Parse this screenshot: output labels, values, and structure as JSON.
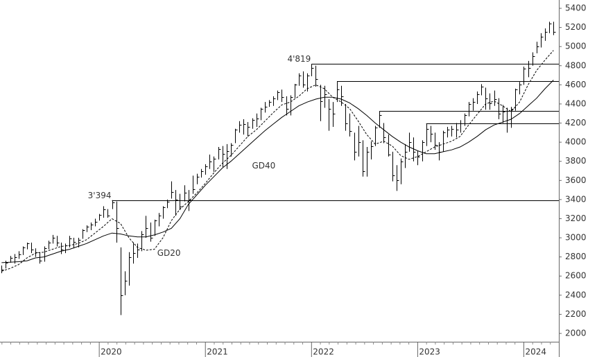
{
  "chart_data": {
    "type": "ohlc",
    "xlim": [
      2019.065,
      2024.33
    ],
    "ylim": [
      1913,
      5487
    ],
    "xticks": [
      2020,
      2021,
      2022,
      2023,
      2024
    ],
    "yticks": [
      2000,
      2200,
      2400,
      2600,
      2800,
      3000,
      3200,
      3400,
      3600,
      3800,
      4000,
      4200,
      4400,
      4600,
      4800,
      5000,
      5200,
      5400
    ],
    "color": "#000000",
    "bars": {
      "x": [
        2019.08,
        2019.12,
        2019.16,
        2019.2,
        2019.24,
        2019.28,
        2019.32,
        2019.36,
        2019.4,
        2019.44,
        2019.48,
        2019.52,
        2019.56,
        2019.6,
        2019.64,
        2019.68,
        2019.72,
        2019.76,
        2019.8,
        2019.84,
        2019.88,
        2019.92,
        2019.96,
        2020.0,
        2020.04,
        2020.08,
        2020.12,
        2020.16,
        2020.2,
        2020.24,
        2020.28,
        2020.32,
        2020.36,
        2020.4,
        2020.44,
        2020.48,
        2020.52,
        2020.56,
        2020.6,
        2020.64,
        2020.68,
        2020.72,
        2020.76,
        2020.8,
        2020.84,
        2020.88,
        2020.92,
        2020.96,
        2021.0,
        2021.04,
        2021.08,
        2021.12,
        2021.16,
        2021.2,
        2021.24,
        2021.28,
        2021.32,
        2021.36,
        2021.4,
        2021.44,
        2021.48,
        2021.52,
        2021.56,
        2021.6,
        2021.64,
        2021.68,
        2021.72,
        2021.76,
        2021.8,
        2021.84,
        2021.88,
        2021.92,
        2021.96,
        2022.0,
        2022.04,
        2022.08,
        2022.12,
        2022.16,
        2022.2,
        2022.24,
        2022.28,
        2022.32,
        2022.36,
        2022.4,
        2022.44,
        2022.48,
        2022.52,
        2022.56,
        2022.6,
        2022.64,
        2022.68,
        2022.72,
        2022.76,
        2022.8,
        2022.84,
        2022.88,
        2022.92,
        2022.96,
        2023.0,
        2023.04,
        2023.08,
        2023.12,
        2023.16,
        2023.2,
        2023.24,
        2023.28,
        2023.32,
        2023.36,
        2023.4,
        2023.44,
        2023.48,
        2023.52,
        2023.56,
        2023.6,
        2023.64,
        2023.68,
        2023.72,
        2023.76,
        2023.8,
        2023.84,
        2023.88,
        2023.92,
        2023.96,
        2024.0,
        2024.04,
        2024.08,
        2024.12,
        2024.16,
        2024.2,
        2024.24,
        2024.28
      ],
      "high": [
        2710,
        2760,
        2810,
        2830,
        2860,
        2910,
        2950,
        2950,
        2890,
        2850,
        2910,
        2970,
        3030,
        3020,
        2950,
        2940,
        3020,
        3000,
        3000,
        3090,
        3130,
        3160,
        3200,
        3250,
        3330,
        3300,
        3394,
        3380,
        2900,
        2650,
        2850,
        2950,
        2940,
        3070,
        3230,
        3160,
        3190,
        3260,
        3330,
        3400,
        3590,
        3500,
        3460,
        3550,
        3500,
        3650,
        3670,
        3720,
        3770,
        3870,
        3850,
        3950,
        3960,
        3980,
        3990,
        4140,
        4220,
        4240,
        4210,
        4250,
        4300,
        4360,
        4420,
        4440,
        4480,
        4540,
        4550,
        4480,
        4490,
        4610,
        4720,
        4740,
        4720,
        4819,
        4800,
        4600,
        4590,
        4450,
        4420,
        4637,
        4590,
        4400,
        4300,
        4100,
        4170,
        4020,
        3950,
        4010,
        4170,
        4325,
        4200,
        4080,
        3900,
        3760,
        3830,
        3980,
        4100,
        4050,
        3910,
        4020,
        4195,
        4170,
        4100,
        4000,
        4120,
        4160,
        4170,
        4200,
        4230,
        4300,
        4420,
        4460,
        4530,
        4607,
        4570,
        4510,
        4540,
        4460,
        4390,
        4360,
        4370,
        4560,
        4630,
        4790,
        4850,
        4940,
        5050,
        5140,
        5190,
        5260,
        5260
      ],
      "low": [
        2630,
        2680,
        2740,
        2730,
        2780,
        2820,
        2880,
        2840,
        2800,
        2730,
        2750,
        2880,
        2940,
        2910,
        2830,
        2840,
        2900,
        2890,
        2900,
        2990,
        3060,
        3080,
        3120,
        3180,
        3210,
        3210,
        3300,
        2950,
        2192,
        2400,
        2500,
        2730,
        2790,
        2860,
        3000,
        2960,
        3020,
        3120,
        3200,
        3310,
        3410,
        3230,
        3290,
        3380,
        3280,
        3460,
        3560,
        3630,
        3660,
        3720,
        3690,
        3820,
        3740,
        3720,
        3850,
        3990,
        4100,
        4080,
        4060,
        4140,
        4160,
        4230,
        4310,
        4370,
        4380,
        4440,
        4420,
        4280,
        4280,
        4460,
        4590,
        4570,
        4530,
        4690,
        4580,
        4220,
        4360,
        4120,
        4160,
        4420,
        4380,
        4120,
        4060,
        3810,
        3850,
        3640,
        3640,
        3820,
        3960,
        4150,
        3990,
        3850,
        3590,
        3491,
        3560,
        3730,
        3900,
        3800,
        3760,
        3800,
        3960,
        4000,
        3920,
        3810,
        3900,
        4050,
        4060,
        4050,
        4100,
        4170,
        4270,
        4330,
        4400,
        4490,
        4340,
        4340,
        4380,
        4240,
        4200,
        4100,
        4150,
        4330,
        4500,
        4600,
        4680,
        4800,
        4930,
        4990,
        5060,
        5140,
        5120
      ],
      "close": [
        2670,
        2740,
        2790,
        2800,
        2830,
        2900,
        2940,
        2880,
        2850,
        2760,
        2890,
        2950,
        3000,
        2950,
        2880,
        2920,
        2990,
        2960,
        2980,
        3080,
        3120,
        3140,
        3170,
        3240,
        3300,
        3230,
        3370,
        3100,
        2400,
        2550,
        2800,
        2840,
        2880,
        3040,
        3100,
        3000,
        3180,
        3230,
        3320,
        3380,
        3480,
        3400,
        3330,
        3470,
        3400,
        3510,
        3640,
        3700,
        3750,
        3800,
        3830,
        3930,
        3880,
        3910,
        3970,
        4130,
        4180,
        4190,
        4160,
        4230,
        4250,
        4350,
        4370,
        4420,
        4460,
        4520,
        4470,
        4350,
        4470,
        4600,
        4700,
        4600,
        4700,
        4780,
        4660,
        4430,
        4500,
        4350,
        4300,
        4550,
        4480,
        4200,
        4120,
        3900,
        4000,
        3700,
        3900,
        3960,
        4150,
        4280,
        4050,
        3870,
        3650,
        3600,
        3800,
        3900,
        4000,
        3900,
        3850,
        4000,
        4140,
        4090,
        3970,
        3900,
        4100,
        4130,
        4140,
        4130,
        4200,
        4280,
        4400,
        4420,
        4500,
        4580,
        4460,
        4410,
        4450,
        4300,
        4320,
        4200,
        4350,
        4550,
        4600,
        4770,
        4780,
        4900,
        5000,
        5100,
        5150,
        5240,
        5150
      ]
    },
    "series": [
      {
        "name": "GD20",
        "color": "#000000",
        "dashed": true,
        "x": [
          2019.08,
          2019.16,
          2019.24,
          2019.32,
          2019.4,
          2019.48,
          2019.56,
          2019.64,
          2019.72,
          2019.8,
          2019.88,
          2019.96,
          2020.04,
          2020.12,
          2020.2,
          2020.28,
          2020.36,
          2020.44,
          2020.52,
          2020.6,
          2020.68,
          2020.76,
          2020.84,
          2020.92,
          2021.0,
          2021.08,
          2021.16,
          2021.24,
          2021.32,
          2021.4,
          2021.48,
          2021.56,
          2021.64,
          2021.72,
          2021.8,
          2021.88,
          2021.96,
          2022.04,
          2022.12,
          2022.2,
          2022.28,
          2022.36,
          2022.44,
          2022.52,
          2022.6,
          2022.68,
          2022.76,
          2022.84,
          2022.92,
          2023.0,
          2023.08,
          2023.16,
          2023.24,
          2023.32,
          2023.4,
          2023.48,
          2023.56,
          2023.64,
          2023.72,
          2023.8,
          2023.88,
          2023.96,
          2024.04,
          2024.12,
          2024.2,
          2024.28
        ],
        "values": [
          2650,
          2680,
          2720,
          2790,
          2840,
          2850,
          2880,
          2910,
          2920,
          2940,
          2980,
          3050,
          3120,
          3200,
          3150,
          3000,
          2900,
          2870,
          2880,
          3000,
          3180,
          3300,
          3380,
          3470,
          3570,
          3680,
          3780,
          3860,
          3960,
          4060,
          4130,
          4220,
          4310,
          4390,
          4420,
          4480,
          4560,
          4600,
          4560,
          4470,
          4420,
          4350,
          4220,
          4080,
          3980,
          4010,
          3960,
          3860,
          3820,
          3850,
          3900,
          3950,
          3980,
          4010,
          4060,
          4180,
          4290,
          4400,
          4430,
          4380,
          4320,
          4420,
          4600,
          4750,
          4860,
          4960
        ]
      },
      {
        "name": "GD40",
        "color": "#000000",
        "dashed": false,
        "x": [
          2019.08,
          2019.16,
          2019.24,
          2019.32,
          2019.4,
          2019.48,
          2019.56,
          2019.64,
          2019.72,
          2019.8,
          2019.88,
          2019.96,
          2020.04,
          2020.12,
          2020.2,
          2020.28,
          2020.36,
          2020.44,
          2020.52,
          2020.6,
          2020.68,
          2020.76,
          2020.84,
          2020.92,
          2021.0,
          2021.08,
          2021.16,
          2021.24,
          2021.32,
          2021.4,
          2021.48,
          2021.56,
          2021.64,
          2021.72,
          2021.8,
          2021.88,
          2021.96,
          2022.04,
          2022.12,
          2022.2,
          2022.28,
          2022.36,
          2022.44,
          2022.52,
          2022.6,
          2022.68,
          2022.76,
          2022.84,
          2022.92,
          2023.0,
          2023.08,
          2023.16,
          2023.24,
          2023.32,
          2023.4,
          2023.48,
          2023.56,
          2023.64,
          2023.72,
          2023.8,
          2023.88,
          2023.96,
          2024.04,
          2024.12,
          2024.2,
          2024.28
        ],
        "values": [
          2740,
          2745,
          2750,
          2760,
          2790,
          2800,
          2830,
          2860,
          2880,
          2910,
          2940,
          2980,
          3020,
          3050,
          3040,
          3020,
          3010,
          3010,
          3030,
          3060,
          3100,
          3200,
          3350,
          3450,
          3550,
          3640,
          3730,
          3800,
          3880,
          3960,
          4040,
          4120,
          4190,
          4260,
          4320,
          4380,
          4420,
          4450,
          4470,
          4470,
          4450,
          4410,
          4350,
          4280,
          4200,
          4130,
          4060,
          4000,
          3950,
          3910,
          3880,
          3880,
          3900,
          3920,
          3950,
          4000,
          4060,
          4130,
          4180,
          4210,
          4240,
          4300,
          4380,
          4460,
          4560,
          4650
        ]
      }
    ],
    "levels": [
      {
        "value": 3394,
        "label": "3'394",
        "from": 2020.12
      },
      {
        "value": 4819,
        "label": "4'819",
        "from": 2022.0
      },
      {
        "value": 4637,
        "from": 2022.24
      },
      {
        "value": 4325,
        "from": 2022.64
      },
      {
        "value": 4195,
        "from": 2023.08
      }
    ]
  }
}
